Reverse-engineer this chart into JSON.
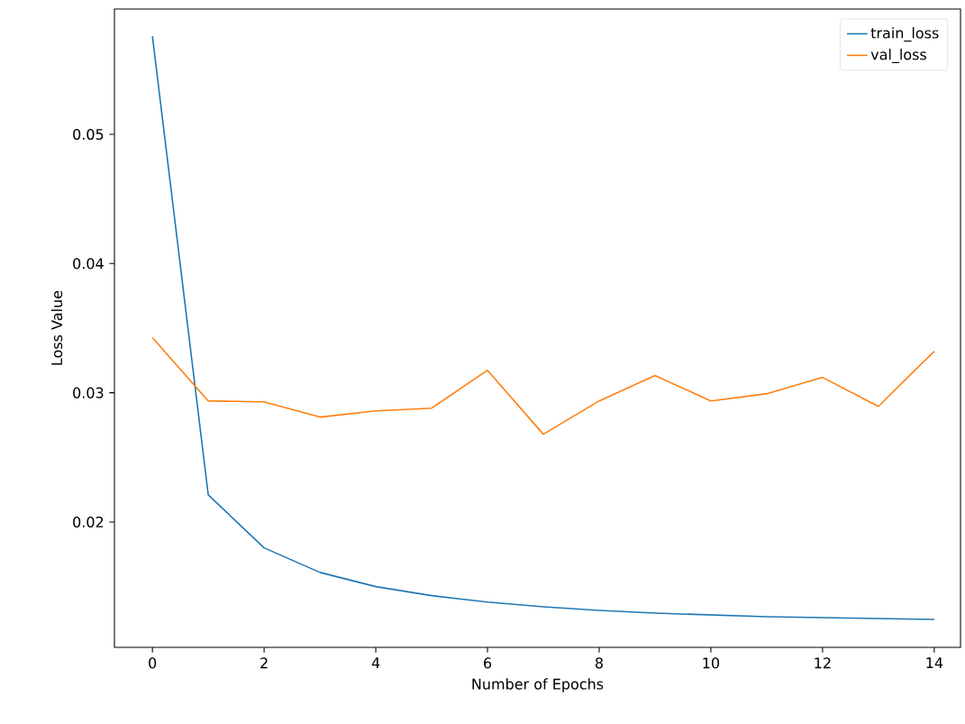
{
  "chart_data": {
    "type": "line",
    "xlabel": "Number of Epochs",
    "ylabel": "Loss Value",
    "x": [
      0,
      1,
      2,
      3,
      4,
      5,
      6,
      7,
      8,
      9,
      10,
      11,
      12,
      13,
      14
    ],
    "series": [
      {
        "name": "train_loss",
        "color": "#1f77b4",
        "values": [
          0.0576,
          0.0221,
          0.018,
          0.0161,
          0.015,
          0.0143,
          0.0138,
          0.01344,
          0.01316,
          0.01295,
          0.01281,
          0.01267,
          0.0126,
          0.01253,
          0.01246
        ]
      },
      {
        "name": "val_loss",
        "color": "#ff7f0e",
        "values": [
          0.03426,
          0.02937,
          0.0293,
          0.02812,
          0.0286,
          0.02881,
          0.03174,
          0.02679,
          0.02937,
          0.03133,
          0.02937,
          0.02993,
          0.03119,
          0.02895,
          0.03321
        ]
      }
    ],
    "xlim": [
      -0.68,
      14.47
    ],
    "ylim": [
      0.0103,
      0.0597
    ],
    "xticks": [
      0,
      2,
      4,
      6,
      8,
      10,
      12,
      14
    ],
    "yticks": [
      0.02,
      0.03,
      0.04,
      0.05
    ],
    "legend": "top right",
    "grid": false,
    "marker": "none",
    "line_style": "solid"
  }
}
